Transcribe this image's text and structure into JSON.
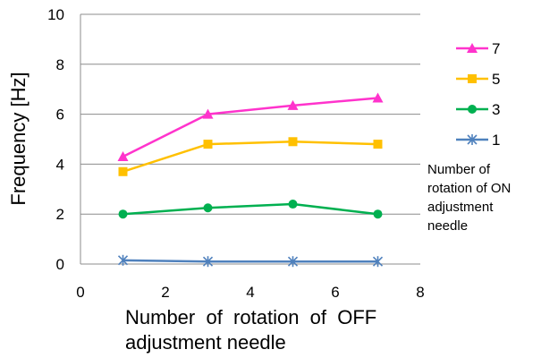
{
  "chart_data": {
    "type": "line",
    "xlabel_lines": [
      "Number  of  rotation  of  OFF",
      "adjustment needle"
    ],
    "ylabel": "Frequency [Hz]",
    "xlim": [
      0,
      8
    ],
    "ylim": [
      0,
      10
    ],
    "xticks": [
      "0",
      "2",
      "4",
      "6",
      "8"
    ],
    "yticks": [
      "0",
      "2",
      "4",
      "6",
      "8",
      "10"
    ],
    "grid": "horizontal",
    "legend_position": "right",
    "legend_title_lines": [
      "Number of",
      "rotation  of  ON",
      "adjustment",
      "needle"
    ],
    "x": [
      1,
      3,
      5,
      7
    ],
    "series": [
      {
        "name": "7",
        "values": [
          4.3,
          6.0,
          6.35,
          6.65
        ],
        "color": "#ff33cc",
        "marker": "triangle"
      },
      {
        "name": "5",
        "values": [
          3.7,
          4.8,
          4.9,
          4.8
        ],
        "color": "#ffc000",
        "marker": "square"
      },
      {
        "name": "3",
        "values": [
          2.0,
          2.25,
          2.4,
          2.0
        ],
        "color": "#00b050",
        "marker": "circle"
      },
      {
        "name": "1",
        "values": [
          0.15,
          0.1,
          0.1,
          0.1
        ],
        "color": "#4f81bd",
        "marker": "star"
      }
    ]
  }
}
